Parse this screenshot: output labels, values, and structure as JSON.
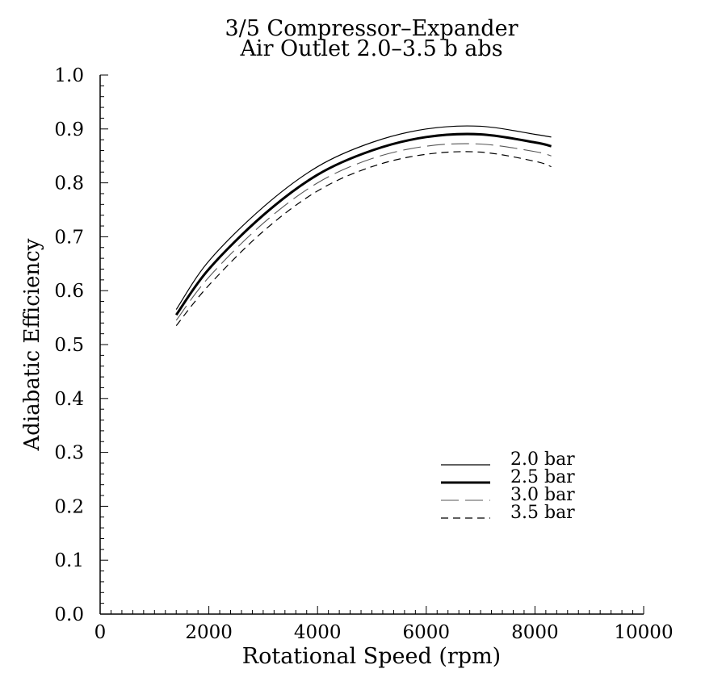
{
  "chart_data": {
    "type": "line",
    "title": "3/5 Compressor–Expander",
    "subtitle": "Air Outlet 2.0–3.5 b abs",
    "xlabel": "Rotational Speed (rpm)",
    "ylabel": "Adiabatic Efficiency",
    "xlim": [
      0,
      10000
    ],
    "ylim": [
      0.0,
      1.0
    ],
    "x_ticks": [
      0,
      2000,
      4000,
      6000,
      8000,
      10000
    ],
    "x_tick_labels": [
      "0",
      "2000",
      "4000",
      "6000",
      "8000",
      "10000"
    ],
    "y_ticks": [
      0.0,
      0.1,
      0.2,
      0.3,
      0.4,
      0.5,
      0.6,
      0.7,
      0.8,
      0.9,
      1.0
    ],
    "y_tick_labels": [
      "0.0",
      "0.1",
      "0.2",
      "0.3",
      "0.4",
      "0.5",
      "0.6",
      "0.7",
      "0.8",
      "0.9",
      "1.0"
    ],
    "grid": false,
    "legend_position": "lower-right",
    "series": [
      {
        "name": "2.0 bar",
        "style": "thin-solid",
        "x": [
          1400,
          2000,
          3000,
          4000,
          5000,
          6000,
          7000,
          8000,
          8300
        ],
        "y": [
          0.565,
          0.655,
          0.755,
          0.83,
          0.875,
          0.9,
          0.905,
          0.89,
          0.885
        ]
      },
      {
        "name": "2.5 bar",
        "style": "thick-solid",
        "x": [
          1400,
          2000,
          3000,
          4000,
          5000,
          6000,
          7000,
          8000,
          8300
        ],
        "y": [
          0.555,
          0.64,
          0.74,
          0.815,
          0.86,
          0.885,
          0.89,
          0.875,
          0.868
        ]
      },
      {
        "name": "3.0 bar",
        "style": "long-dash",
        "x": [
          1400,
          2000,
          3000,
          4000,
          5000,
          6000,
          7000,
          8000,
          8300
        ],
        "y": [
          0.545,
          0.625,
          0.725,
          0.8,
          0.845,
          0.868,
          0.872,
          0.858,
          0.85
        ]
      },
      {
        "name": "3.5 bar",
        "style": "short-dash",
        "x": [
          1400,
          2000,
          3000,
          4000,
          5000,
          6000,
          7000,
          8000,
          8300
        ],
        "y": [
          0.535,
          0.61,
          0.71,
          0.785,
          0.83,
          0.853,
          0.857,
          0.84,
          0.83
        ]
      }
    ]
  }
}
